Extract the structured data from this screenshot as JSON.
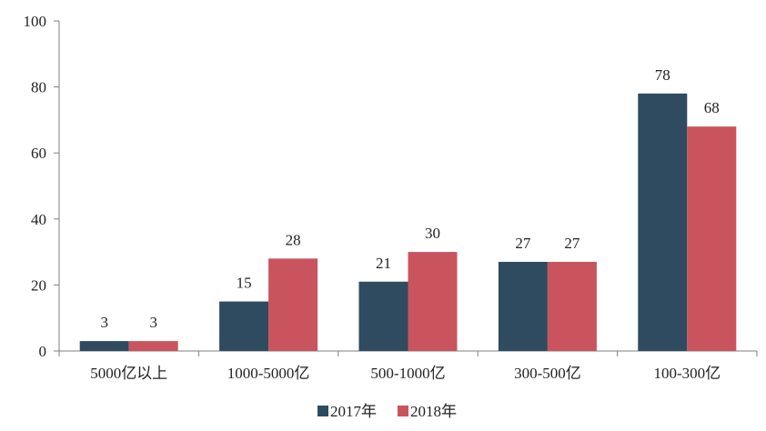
{
  "chart_data": {
    "type": "bar",
    "categories": [
      "5000亿以上",
      "1000-5000亿",
      "500-1000亿",
      "300-500亿",
      "100-300亿"
    ],
    "series": [
      {
        "name": "2017年",
        "values": [
          3,
          15,
          21,
          27,
          78
        ],
        "color": "#2e4b5f"
      },
      {
        "name": "2018年",
        "values": [
          3,
          28,
          30,
          27,
          68
        ],
        "color": "#c9545e"
      }
    ],
    "ylim": [
      0,
      100
    ],
    "yticks": [
      0,
      20,
      40,
      60,
      80,
      100
    ],
    "grid": false,
    "legend_position": "bottom",
    "data_labels": true
  }
}
